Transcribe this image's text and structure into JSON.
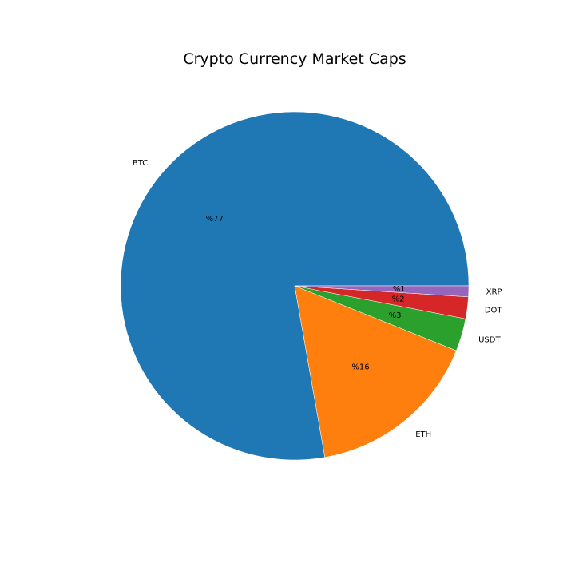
{
  "chart_data": {
    "type": "pie",
    "title": "Crypto Currency Market Caps",
    "categories": [
      "BTC",
      "ETH",
      "USDT",
      "DOT",
      "XRP"
    ],
    "values": [
      77,
      16,
      3,
      2,
      1
    ],
    "percent_labels": [
      "%77",
      "%16",
      "%3",
      "%2",
      "%1"
    ],
    "colors": [
      "#1f77b4",
      "#ff7f0e",
      "#2ca02c",
      "#d62728",
      "#9467bd"
    ],
    "start_angle_deg": 0,
    "direction": "counterclockwise",
    "legend": "none"
  }
}
